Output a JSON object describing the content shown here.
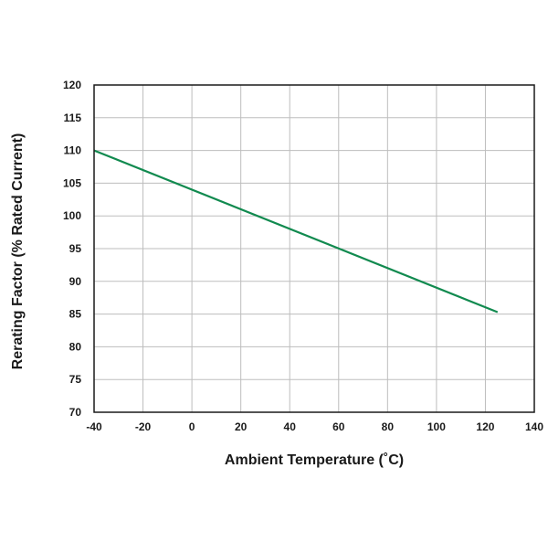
{
  "chart_data": {
    "type": "line",
    "title": "",
    "xlabel": "Ambient Temperature (˚C)",
    "ylabel": "Rerating Factor (% Rated Current)",
    "xlim": [
      -40,
      140
    ],
    "ylim": [
      70,
      120
    ],
    "xticks": [
      -40,
      -20,
      0,
      20,
      40,
      60,
      80,
      100,
      120,
      140
    ],
    "yticks": [
      70,
      75,
      80,
      85,
      90,
      95,
      100,
      105,
      110,
      115,
      120
    ],
    "x_tick_labels": [
      "-40",
      "-20",
      "0",
      "20",
      "40",
      "60",
      "80",
      "100",
      "120",
      "140"
    ],
    "y_tick_labels": [
      "70",
      "75",
      "80",
      "85",
      "90",
      "95",
      "100",
      "105",
      "110",
      "115",
      "120"
    ],
    "grid": true,
    "legend": "none",
    "series": [
      {
        "color": "#118a4f",
        "points": [
          {
            "x": -40,
            "y": 110
          },
          {
            "x": 125,
            "y": 85.3
          }
        ]
      }
    ]
  },
  "colors": {
    "grid": "#bdbdbd",
    "frame": "#1a1a1a",
    "line": "#118a4f",
    "text": "#1a1a1a"
  }
}
